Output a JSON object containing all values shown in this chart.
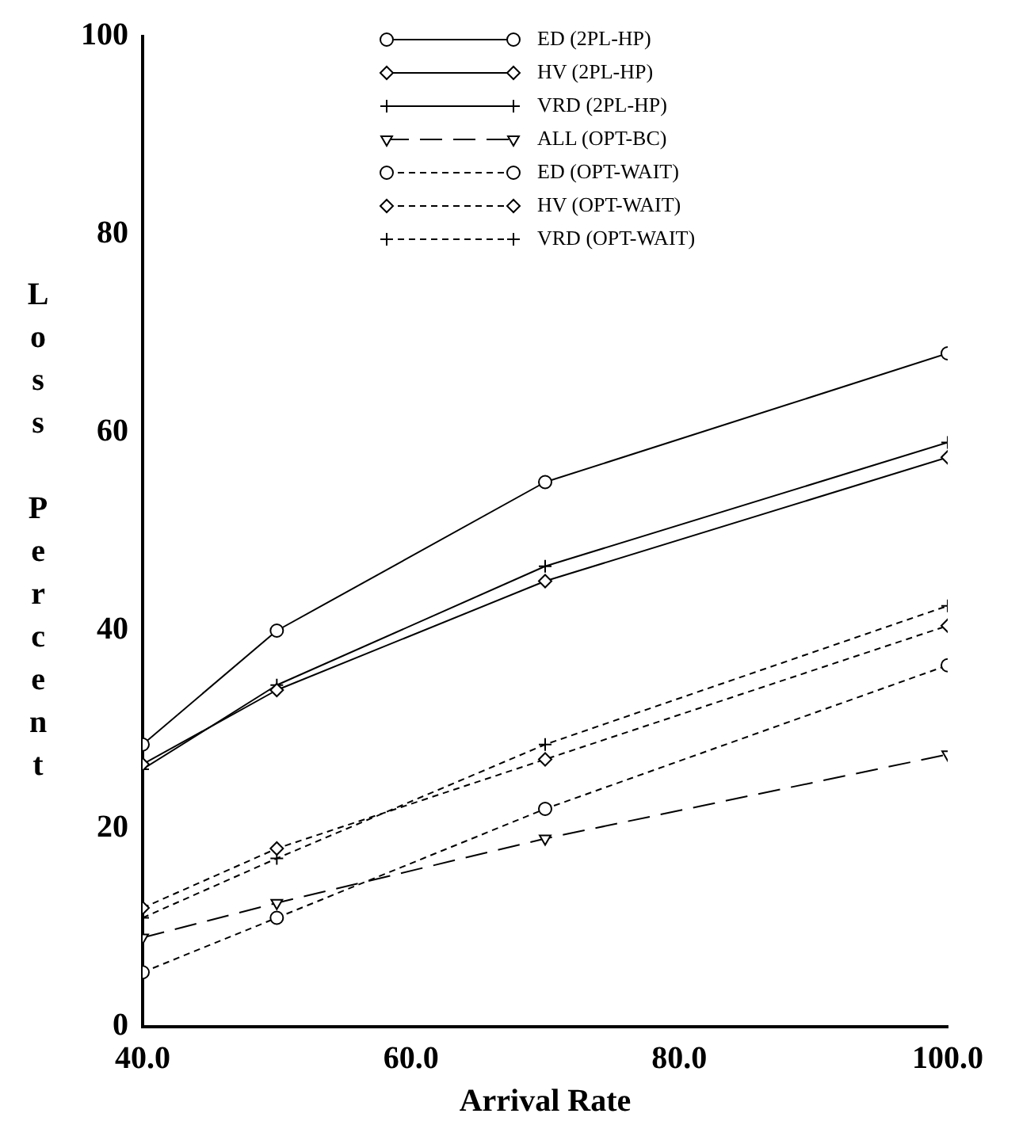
{
  "chart_data": {
    "type": "line",
    "xlabel": "Arrival Rate",
    "ylabel": "Loss Percent",
    "x": [
      40,
      50,
      70,
      100
    ],
    "xlim": [
      40,
      100
    ],
    "xticks": [
      {
        "value": 40,
        "label": "40.0"
      },
      {
        "value": 60,
        "label": "60.0"
      },
      {
        "value": 80,
        "label": "80.0"
      },
      {
        "value": 100,
        "label": "100.0"
      }
    ],
    "ylim": [
      0,
      100
    ],
    "yticks": [
      0,
      20,
      40,
      60,
      80,
      100
    ],
    "grid": false,
    "legend": "top",
    "series": [
      {
        "name": "ED (2PL-HP)",
        "color": "#000000",
        "marker": "circle",
        "line_style": "solid",
        "values": [
          28.5,
          40,
          55,
          68
        ]
      },
      {
        "name": "HV (2PL-HP)",
        "color": "#000000",
        "marker": "diamond",
        "line_style": "solid",
        "values": [
          26.5,
          34,
          45,
          57.5
        ]
      },
      {
        "name": "VRD (2PL-HP)",
        "color": "#000000",
        "marker": "cross",
        "line_style": "solid",
        "values": [
          26,
          34.5,
          46.5,
          59
        ]
      },
      {
        "name": "ALL (OPT-BC)",
        "color": "#000000",
        "marker": "triangle",
        "line_style": "dashed",
        "values": [
          9,
          12.5,
          19,
          27.5
        ]
      },
      {
        "name": "ED (OPT-WAIT)",
        "color": "#000000",
        "marker": "circle",
        "line_style": "dotted",
        "values": [
          5.5,
          11,
          22,
          36.5
        ]
      },
      {
        "name": "HV (OPT-WAIT)",
        "color": "#000000",
        "marker": "diamond",
        "line_style": "dotted",
        "values": [
          12,
          18,
          27,
          40.5
        ]
      },
      {
        "name": "VRD (OPT-WAIT)",
        "color": "#000000",
        "marker": "cross",
        "line_style": "dotted",
        "values": [
          11,
          17,
          28.5,
          42.5
        ]
      }
    ]
  }
}
